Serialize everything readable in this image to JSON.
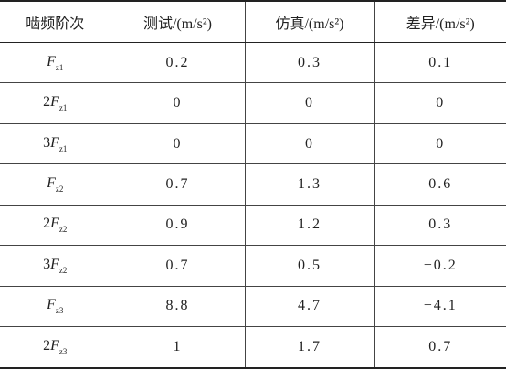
{
  "table": {
    "header": [
      "啮频阶次",
      "测试/(m/s²)",
      "仿真/(m/s²)",
      "差异/(m/s²)"
    ],
    "rows": [
      [
        {
          "symbol": "F",
          "sub": "z1"
        },
        "0.2",
        "0.3",
        "0.1"
      ],
      [
        {
          "coef": "2",
          "symbol": "F",
          "sub": "z1"
        },
        "0",
        "0",
        "0"
      ],
      [
        {
          "coef": "3",
          "symbol": "F",
          "sub": "z1"
        },
        "0",
        "0",
        "0"
      ],
      [
        {
          "symbol": "F",
          "sub": "z2"
        },
        "0.7",
        "1.3",
        "0.6"
      ],
      [
        {
          "coef": "2",
          "symbol": "F",
          "sub": "z2"
        },
        "0.9",
        "1.2",
        "0.3"
      ],
      [
        {
          "coef": "3",
          "symbol": "F",
          "sub": "z2"
        },
        "0.7",
        "0.5",
        "−0.2"
      ],
      [
        {
          "symbol": "F",
          "sub": "z3"
        },
        "8.8",
        "4.7",
        "−4.1"
      ],
      [
        {
          "coef": "2",
          "symbol": "F",
          "sub": "z3"
        },
        "1",
        "1.7",
        "0.7"
      ]
    ]
  }
}
